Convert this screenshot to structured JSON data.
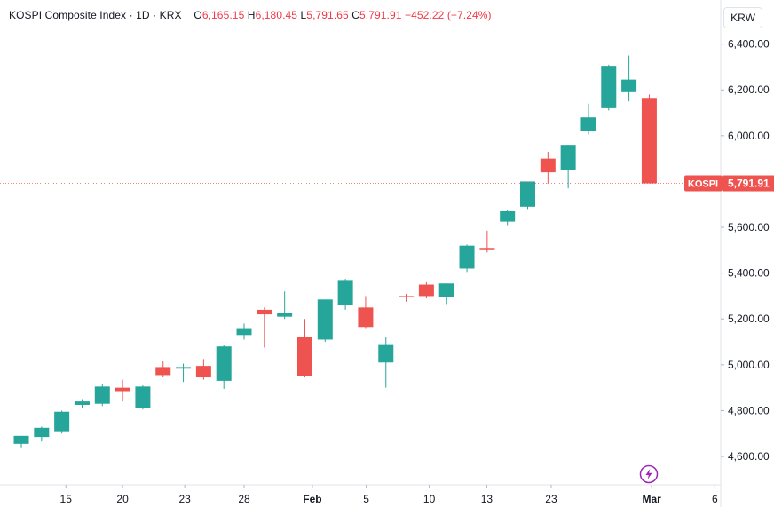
{
  "header": {
    "symbol_name": "KOSPI Composite Index",
    "interval": "1D",
    "exchange": "KRX",
    "open_label": "O",
    "open_value": "6,165.15",
    "high_label": "H",
    "high_value": "6,180.45",
    "low_label": "L",
    "low_value": "5,791.65",
    "close_label": "C",
    "close_value": "5,791.91",
    "change": "−452.22 (−7.24%)"
  },
  "currency_label": "KRW",
  "colors": {
    "up": "#26a69a",
    "down": "#ef5350",
    "axis_text": "#131722",
    "grid_line": "#e0e3eb"
  },
  "chart_data": {
    "type": "candlestick",
    "ylim": [
      4480,
      6480
    ],
    "y_ticks": [
      "4,600.00",
      "4,800.00",
      "5,000.00",
      "5,200.00",
      "5,400.00",
      "5,600.00",
      "5,800.00",
      "6,000.00",
      "6,200.00",
      "6,400.00"
    ],
    "x_ticks": [
      "15",
      "20",
      "23",
      "28",
      "Feb",
      "5",
      "10",
      "13",
      "23",
      "Mar",
      "6"
    ],
    "last_price": {
      "label": "KOSPI",
      "value": "5,791.91",
      "numeric": 5791.91
    },
    "candles": [
      {
        "date": "Jan 12",
        "open": 4655,
        "high": 4680,
        "low": 4640,
        "close": 4690,
        "dir": "up"
      },
      {
        "date": "Jan 13",
        "open": 4685,
        "high": 4730,
        "low": 4665,
        "close": 4725,
        "dir": "up"
      },
      {
        "date": "Jan 14",
        "open": 4710,
        "high": 4800,
        "low": 4700,
        "close": 4795,
        "dir": "up"
      },
      {
        "date": "Jan 15",
        "open": 4825,
        "high": 4850,
        "low": 4810,
        "close": 4840,
        "dir": "up"
      },
      {
        "date": "Jan 16",
        "open": 4830,
        "high": 4915,
        "low": 4820,
        "close": 4905,
        "dir": "up"
      },
      {
        "date": "Jan 19",
        "open": 4900,
        "high": 4935,
        "low": 4840,
        "close": 4885,
        "dir": "down"
      },
      {
        "date": "Jan 20",
        "open": 4810,
        "high": 4910,
        "low": 4805,
        "close": 4905,
        "dir": "up"
      },
      {
        "date": "Jan 21",
        "open": 4990,
        "high": 5015,
        "low": 4945,
        "close": 4955,
        "dir": "down"
      },
      {
        "date": "Jan 22",
        "open": 4983,
        "high": 5005,
        "low": 4925,
        "close": 4990,
        "dir": "up"
      },
      {
        "date": "Jan 23",
        "open": 4995,
        "high": 5025,
        "low": 4935,
        "close": 4945,
        "dir": "down"
      },
      {
        "date": "Jan 26",
        "open": 4930,
        "high": 5085,
        "low": 4895,
        "close": 5080,
        "dir": "up"
      },
      {
        "date": "Jan 27",
        "open": 5130,
        "high": 5180,
        "low": 5110,
        "close": 5160,
        "dir": "up"
      },
      {
        "date": "Jan 28",
        "open": 5240,
        "high": 5250,
        "low": 5075,
        "close": 5220,
        "dir": "down"
      },
      {
        "date": "Jan 29",
        "open": 5210,
        "high": 5320,
        "low": 5200,
        "close": 5225,
        "dir": "up"
      },
      {
        "date": "Jan 30",
        "open": 5120,
        "high": 5200,
        "low": 4945,
        "close": 4950,
        "dir": "down"
      },
      {
        "date": "Feb 2",
        "open": 5110,
        "high": 5285,
        "low": 5100,
        "close": 5285,
        "dir": "up"
      },
      {
        "date": "Feb 3",
        "open": 5260,
        "high": 5375,
        "low": 5240,
        "close": 5370,
        "dir": "up"
      },
      {
        "date": "Feb 4",
        "open": 5250,
        "high": 5300,
        "low": 5160,
        "close": 5165,
        "dir": "down"
      },
      {
        "date": "Feb 5",
        "open": 5010,
        "high": 5120,
        "low": 4900,
        "close": 5090,
        "dir": "up"
      },
      {
        "date": "Feb 6",
        "open": 5300,
        "high": 5310,
        "low": 5275,
        "close": 5300,
        "dir": "down"
      },
      {
        "date": "Feb 9",
        "open": 5350,
        "high": 5360,
        "low": 5290,
        "close": 5300,
        "dir": "down"
      },
      {
        "date": "Feb 10",
        "open": 5295,
        "high": 5355,
        "low": 5265,
        "close": 5355,
        "dir": "up"
      },
      {
        "date": "Feb 11",
        "open": 5420,
        "high": 5525,
        "low": 5405,
        "close": 5520,
        "dir": "up"
      },
      {
        "date": "Feb 12",
        "open": 5510,
        "high": 5585,
        "low": 5490,
        "close": 5507,
        "dir": "down"
      },
      {
        "date": "Feb 13",
        "open": 5625,
        "high": 5675,
        "low": 5610,
        "close": 5670,
        "dir": "up"
      },
      {
        "date": "Feb 19",
        "open": 5690,
        "high": 5800,
        "low": 5680,
        "close": 5800,
        "dir": "up"
      },
      {
        "date": "Feb 20",
        "open": 5900,
        "high": 5930,
        "low": 5790,
        "close": 5840,
        "dir": "down"
      },
      {
        "date": "Feb 23",
        "open": 5850,
        "high": 5960,
        "low": 5770,
        "close": 5960,
        "dir": "up"
      },
      {
        "date": "Feb 24",
        "open": 6020,
        "high": 6140,
        "low": 6005,
        "close": 6080,
        "dir": "up"
      },
      {
        "date": "Feb 25",
        "open": 6120,
        "high": 6310,
        "low": 6110,
        "close": 6305,
        "dir": "up"
      },
      {
        "date": "Feb 26",
        "open": 6190,
        "high": 6350,
        "low": 6150,
        "close": 6245,
        "dir": "up"
      },
      {
        "date": "Feb 27",
        "open": 6165.15,
        "high": 6180.45,
        "low": 5791.65,
        "close": 5791.91,
        "dir": "down"
      }
    ]
  }
}
